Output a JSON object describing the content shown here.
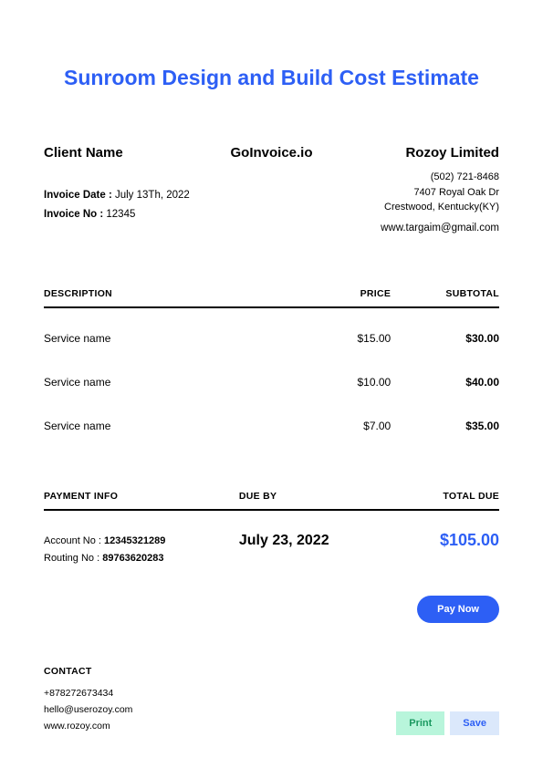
{
  "title": "Sunroom Design and Build Cost Estimate",
  "brand": "GoInvoice.io",
  "client": {
    "heading": "Client Name"
  },
  "invoice": {
    "date_label": "Invoice Date :",
    "date_value": " July 13Th, 2022",
    "no_label": "Invoice No :",
    "no_value": " 12345"
  },
  "company": {
    "name": "Rozoy Limited",
    "phone": "(502) 721-8468",
    "street": "7407 Royal Oak Dr",
    "city": "Crestwood, Kentucky(KY)",
    "email": "www.targaim@gmail.com"
  },
  "table": {
    "headers": {
      "desc": "DESCRIPTION",
      "price": "PRICE",
      "subtotal": "SUBTOTAL"
    },
    "rows": [
      {
        "desc": "Service name",
        "price": "$15.00",
        "subtotal": "$30.00"
      },
      {
        "desc": "Service name",
        "price": "$10.00",
        "subtotal": "$40.00"
      },
      {
        "desc": "Service name",
        "price": "$7.00",
        "subtotal": "$35.00"
      }
    ]
  },
  "payment": {
    "headers": {
      "info": "PAYMENT INFO",
      "dueby": "DUE BY",
      "total": "TOTAL DUE"
    },
    "account_label": "Account No :",
    "account_value": " 12345321289",
    "routing_label": "Routing No :",
    "routing_value": " 89763620283",
    "due_date": "July 23, 2022",
    "total_due": "$105.00"
  },
  "paynow_label": "Pay Now",
  "contact": {
    "heading": "CONTACT",
    "phone": "+878272673434",
    "email": "hello@userozoy.com",
    "web": "www.rozoy.com"
  },
  "actions": {
    "print": "Print",
    "save": "Save"
  },
  "colors": {
    "accent": "#2d5ff5",
    "print_bg": "#b8f5db",
    "print_fg": "#1a9960",
    "save_bg": "#dbe8fb"
  }
}
